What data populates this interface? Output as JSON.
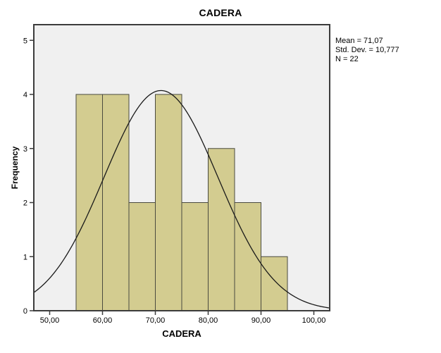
{
  "chart_data": {
    "type": "bar",
    "subtype": "histogram",
    "title": "CADERA",
    "xlabel": "CADERA",
    "ylabel": "Frequency",
    "bin_edges": [
      55,
      60,
      65,
      70,
      75,
      80,
      85,
      90,
      95
    ],
    "frequencies": [
      4,
      4,
      2,
      4,
      2,
      3,
      2,
      1
    ],
    "x_ticks": [
      50,
      60,
      70,
      80,
      90,
      100
    ],
    "x_tick_labels": [
      "50,00",
      "60,00",
      "70,00",
      "80,00",
      "90,00",
      "100,00"
    ],
    "y_ticks": [
      0,
      1,
      2,
      3,
      4,
      5
    ],
    "y_tick_labels": [
      "0",
      "1",
      "2",
      "3",
      "4",
      "5"
    ],
    "xlim": [
      47,
      103
    ],
    "ylim": [
      0,
      5.29
    ],
    "grid": false,
    "legend_position": "right-outside",
    "normal_curve": {
      "mean": 71.07,
      "std_dev": 10.777,
      "n": 22,
      "bin_width": 5
    },
    "stats_box": {
      "mean_label": "Mean = 71,07",
      "std_dev_label": "Std. Dev. = 10,777",
      "n_label": "N = 22"
    },
    "colors": {
      "bar_fill": "#d3cc90",
      "bar_stroke": "#4a4a3f",
      "plot_bg": "#f0f0f0",
      "frame": "#3c3c3c",
      "curve": "#1a1a1a",
      "text": "#000000",
      "page_bg": "#ffffff"
    }
  }
}
